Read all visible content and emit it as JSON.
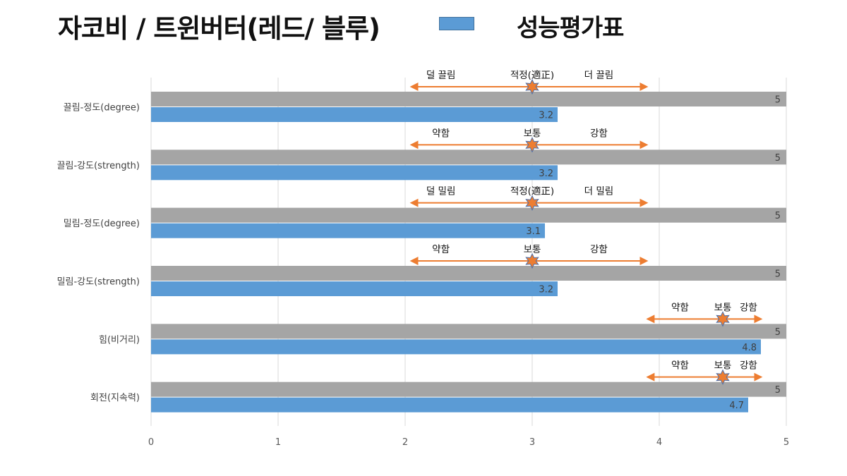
{
  "title": "자코비 / 트윈버터(레드/ 블루)",
  "legend": {
    "label": "성능평가표"
  },
  "colors": {
    "gray_bar": "#a5a5a5",
    "blue_bar": "#5b9bd5",
    "arrow": "#ed7d31",
    "star_fill": "#ed7d31",
    "star_stroke": "#4f6fa8",
    "grid": "#d9d9d9"
  },
  "chart_data": {
    "type": "bar",
    "orientation": "horizontal",
    "xlim": [
      0,
      5
    ],
    "xticks": [
      "0",
      "1",
      "2",
      "3",
      "4",
      "5"
    ],
    "grid": true,
    "categories": [
      "끌림-정도(degree)",
      "끌림-강도(strength)",
      "밀림-정도(degree)",
      "밀림-강도(strength)",
      "힘(비거리)",
      "회전(지속력)"
    ],
    "series": [
      {
        "values": [
          5,
          5,
          5,
          5,
          5,
          5
        ],
        "labels": [
          "5",
          "5",
          "5",
          "5",
          "5",
          "5"
        ]
      },
      {
        "name": "성능평가표",
        "values": [
          3.2,
          3.2,
          3.1,
          3.2,
          4.8,
          4.7
        ],
        "labels": [
          "3.2",
          "3.2",
          "3.1",
          "3.2",
          "4.8",
          "4.7"
        ]
      }
    ],
    "annotations": [
      {
        "left": "덜 끌림",
        "center": "적정(適正)",
        "right": "더 끌림",
        "from": 2.07,
        "to": 3.88,
        "star": 3.0
      },
      {
        "left": "약함",
        "center": "보통",
        "right": "강함",
        "from": 2.07,
        "to": 3.88,
        "star": 3.0
      },
      {
        "left": "덜 밀림",
        "center": "적정(適正)",
        "right": "더 밀림",
        "from": 2.07,
        "to": 3.88,
        "star": 3.0
      },
      {
        "left": "약함",
        "center": "보통",
        "right": "강함",
        "from": 2.07,
        "to": 3.88,
        "star": 3.0
      },
      {
        "left": "약함",
        "center": "보통",
        "right": "강함",
        "from": 3.93,
        "to": 4.78,
        "star": 4.5
      },
      {
        "left": "약함",
        "center": "보통",
        "right": "강함",
        "from": 3.93,
        "to": 4.78,
        "star": 4.5
      }
    ]
  }
}
